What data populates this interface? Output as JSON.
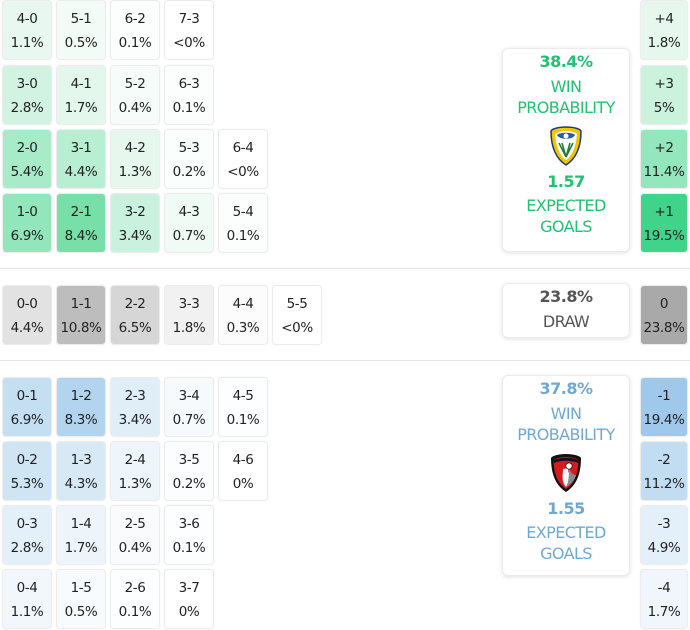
{
  "colors": {
    "home_accent": "#20c270",
    "away_accent": "#6fa9d3",
    "draw_accent": "#555555"
  },
  "home_grid": [
    [
      {
        "score": "4-0",
        "pct": "1.1%",
        "bg": "#e8f8f0"
      },
      {
        "score": "5-1",
        "pct": "0.5%",
        "bg": "#f3fbf7"
      },
      {
        "score": "6-2",
        "pct": "0.1%",
        "bg": "#fbfefc"
      },
      {
        "score": "7-3",
        "pct": "<0%",
        "bg": "#ffffff"
      }
    ],
    [
      {
        "score": "3-0",
        "pct": "2.8%",
        "bg": "#d3f3e2"
      },
      {
        "score": "4-1",
        "pct": "1.7%",
        "bg": "#e3f7ec"
      },
      {
        "score": "5-2",
        "pct": "0.4%",
        "bg": "#f6fcf9"
      },
      {
        "score": "6-3",
        "pct": "0.1%",
        "bg": "#fcfefd"
      }
    ],
    [
      {
        "score": "2-0",
        "pct": "5.4%",
        "bg": "#a8ebc8"
      },
      {
        "score": "3-1",
        "pct": "4.4%",
        "bg": "#b8eed2"
      },
      {
        "score": "4-2",
        "pct": "1.3%",
        "bg": "#e6f8ee"
      },
      {
        "score": "5-3",
        "pct": "0.2%",
        "bg": "#fafefc"
      },
      {
        "score": "6-4",
        "pct": "<0%",
        "bg": "#ffffff"
      }
    ],
    [
      {
        "score": "1-0",
        "pct": "6.9%",
        "bg": "#93e6bb"
      },
      {
        "score": "2-1",
        "pct": "8.4%",
        "bg": "#78dfa8"
      },
      {
        "score": "3-2",
        "pct": "3.4%",
        "bg": "#caf1dd"
      },
      {
        "score": "4-3",
        "pct": "0.7%",
        "bg": "#f0fbf5"
      },
      {
        "score": "5-4",
        "pct": "0.1%",
        "bg": "#fcfefd"
      }
    ]
  ],
  "draw_row": [
    {
      "score": "0-0",
      "pct": "4.4%",
      "bg": "#e2e2e2"
    },
    {
      "score": "1-1",
      "pct": "10.8%",
      "bg": "#bdbdbd"
    },
    {
      "score": "2-2",
      "pct": "6.5%",
      "bg": "#d6d6d6"
    },
    {
      "score": "3-3",
      "pct": "1.8%",
      "bg": "#f1f1f1"
    },
    {
      "score": "4-4",
      "pct": "0.3%",
      "bg": "#fcfcfc"
    },
    {
      "score": "5-5",
      "pct": "<0%",
      "bg": "#ffffff"
    }
  ],
  "away_grid": [
    [
      {
        "score": "0-1",
        "pct": "6.9%",
        "bg": "#c4def2"
      },
      {
        "score": "1-2",
        "pct": "8.3%",
        "bg": "#b2d4ee"
      },
      {
        "score": "2-3",
        "pct": "3.4%",
        "bg": "#e0eef8"
      },
      {
        "score": "3-4",
        "pct": "0.7%",
        "bg": "#f6fafd"
      },
      {
        "score": "4-5",
        "pct": "0.1%",
        "bg": "#fdfeff"
      }
    ],
    [
      {
        "score": "0-2",
        "pct": "5.3%",
        "bg": "#d0e5f4"
      },
      {
        "score": "1-3",
        "pct": "4.3%",
        "bg": "#d8e9f6"
      },
      {
        "score": "2-4",
        "pct": "1.3%",
        "bg": "#eff6fb"
      },
      {
        "score": "3-5",
        "pct": "0.2%",
        "bg": "#fcfdfe"
      },
      {
        "score": "4-6",
        "pct": "0%",
        "bg": "#ffffff"
      }
    ],
    [
      {
        "score": "0-3",
        "pct": "2.8%",
        "bg": "#e4f0f9"
      },
      {
        "score": "1-4",
        "pct": "1.7%",
        "bg": "#edf5fb"
      },
      {
        "score": "2-5",
        "pct": "0.4%",
        "bg": "#f9fbfd"
      },
      {
        "score": "3-6",
        "pct": "0.1%",
        "bg": "#fdfeff"
      }
    ],
    [
      {
        "score": "0-4",
        "pct": "1.1%",
        "bg": "#f1f7fb"
      },
      {
        "score": "1-5",
        "pct": "0.5%",
        "bg": "#f8fbfd"
      },
      {
        "score": "2-6",
        "pct": "0.1%",
        "bg": "#fdfeff"
      },
      {
        "score": "3-7",
        "pct": "0%",
        "bg": "#ffffff"
      }
    ]
  ],
  "goal_diff": {
    "home": [
      {
        "label": "+4",
        "pct": "1.8%",
        "bg": "#e6f8ee"
      },
      {
        "label": "+3",
        "pct": "5%",
        "bg": "#cbf2dd"
      },
      {
        "label": "+2",
        "pct": "11.4%",
        "bg": "#94e7bc"
      },
      {
        "label": "+1",
        "pct": "19.5%",
        "bg": "#3fd48a"
      }
    ],
    "draw": {
      "label": "0",
      "pct": "23.8%",
      "bg": "#a9a9a9"
    },
    "away": [
      {
        "label": "-1",
        "pct": "19.4%",
        "bg": "#9fc8ea"
      },
      {
        "label": "-2",
        "pct": "11.2%",
        "bg": "#c2ddf2"
      },
      {
        "label": "-3",
        "pct": "4.9%",
        "bg": "#e3eff9"
      },
      {
        "label": "-4",
        "pct": "1.7%",
        "bg": "#f0f6fb"
      }
    ]
  },
  "home_summary": {
    "win_pct": "38.4%",
    "win_label_1": "WIN",
    "win_label_2": "PROBABILITY",
    "crest": "leeds-united-crest",
    "xg": "1.57",
    "xg_label_1": "EXPECTED",
    "xg_label_2": "GOALS"
  },
  "draw_summary": {
    "pct": "23.8%",
    "label": "DRAW"
  },
  "away_summary": {
    "win_pct": "37.8%",
    "win_label_1": "WIN",
    "win_label_2": "PROBABILITY",
    "crest": "afc-bournemouth-crest",
    "xg": "1.55",
    "xg_label_1": "EXPECTED",
    "xg_label_2": "GOALS"
  }
}
